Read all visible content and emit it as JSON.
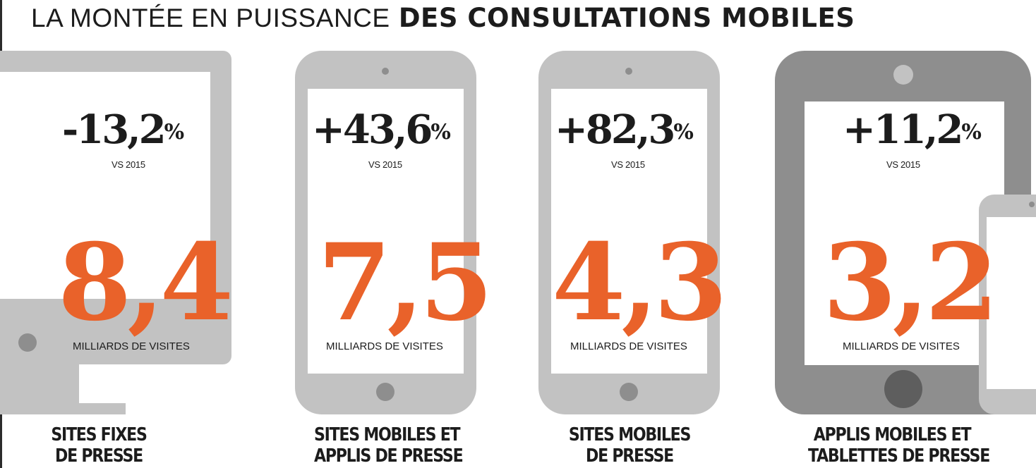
{
  "title": {
    "light": "LA MONTÉE EN PUISSANCE",
    "bold": "DES CONSULTATIONS  MOBILES"
  },
  "cards": [
    {
      "icon": "desktop-monitor-icon",
      "change": "-13,2",
      "unit": "%",
      "vs": "VS 2015",
      "value": "8,4",
      "value_unit": "MILLIARDS DE VISITES",
      "label_line1": "SITES FIXES",
      "label_line2": "DE PRESSE"
    },
    {
      "icon": "smartphone-icon",
      "change": "+43,6",
      "unit": "%",
      "vs": "VS 2015",
      "value": "7,5",
      "value_unit": "MILLIARDS DE VISITES",
      "label_line1": "SITES MOBILES ET",
      "label_line2": "APPLIS DE PRESSE"
    },
    {
      "icon": "smartphone-icon",
      "change": "+82,3",
      "unit": "%",
      "vs": "VS 2015",
      "value": "4,3",
      "value_unit": "MILLIARDS DE VISITES",
      "label_line1": "SITES MOBILES",
      "label_line2": "DE PRESSE"
    },
    {
      "icon": "tablet-and-phone-icon",
      "change": "+11,2",
      "unit": "%",
      "vs": "VS 2015",
      "value": "3,2",
      "value_unit": "MILLIARDS DE VISITES",
      "label_line1": "APPLIS MOBILES ET",
      "label_line2": "TABLETTES DE PRESSE"
    }
  ],
  "colors": {
    "accent": "#e9622a",
    "device_light": "#c2c2c2",
    "device_dark": "#8e8e8e",
    "text": "#1c1c1c"
  }
}
